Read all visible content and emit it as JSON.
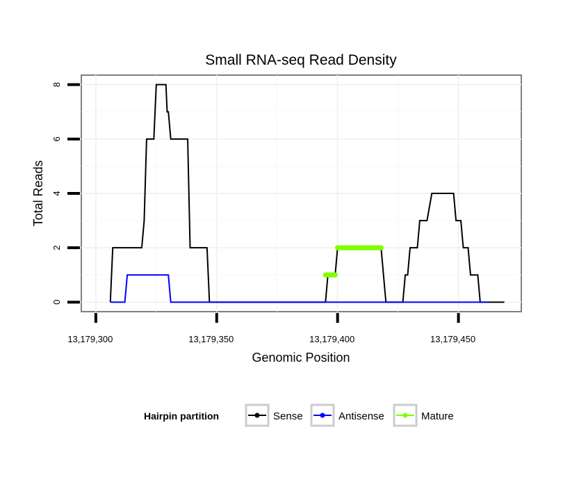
{
  "chart_data": {
    "type": "line",
    "title": "Small RNA-seq Read Density",
    "xlabel": "Genomic Position",
    "ylabel": "Total Reads",
    "xlim": [
      13179294,
      13179476
    ],
    "ylim": [
      -0.35,
      8.35
    ],
    "x_ticks": [
      13179300,
      13179350,
      13179400,
      13179450
    ],
    "x_tick_labels": [
      "13,179,300",
      "13,179,350",
      "13,179,400",
      "13,179,450"
    ],
    "y_ticks": [
      0,
      2,
      4,
      6,
      8
    ],
    "y_tick_labels": [
      "0",
      "2",
      "4",
      "6",
      "8"
    ],
    "grid": true,
    "legend": {
      "title": "Hairpin partition",
      "position": "bottom",
      "entries": [
        "Sense",
        "Antisense",
        "Mature"
      ]
    },
    "series": [
      {
        "name": "Sense",
        "color": "#000000",
        "points": [
          [
            13179306,
            0
          ],
          [
            13179307,
            2
          ],
          [
            13179319,
            2
          ],
          [
            13179320,
            3
          ],
          [
            13179321,
            6
          ],
          [
            13179324,
            6
          ],
          [
            13179325,
            8
          ],
          [
            13179329,
            8
          ],
          [
            13179329.5,
            7
          ],
          [
            13179330,
            7
          ],
          [
            13179331,
            6
          ],
          [
            13179338,
            6
          ],
          [
            13179339,
            2
          ],
          [
            13179346,
            2
          ],
          [
            13179347,
            0
          ],
          [
            13179395,
            0
          ],
          [
            13179396,
            1
          ],
          [
            13179399,
            1
          ],
          [
            13179400,
            2
          ],
          [
            13179418,
            2
          ],
          [
            13179420,
            0
          ],
          [
            13179427,
            0
          ],
          [
            13179428,
            1
          ],
          [
            13179429,
            1
          ],
          [
            13179430,
            2
          ],
          [
            13179433,
            2
          ],
          [
            13179434,
            3
          ],
          [
            13179437,
            3
          ],
          [
            13179439,
            4
          ],
          [
            13179448,
            4
          ],
          [
            13179449,
            3
          ],
          [
            13179451,
            3
          ],
          [
            13179452,
            2
          ],
          [
            13179454,
            2
          ],
          [
            13179455,
            1
          ],
          [
            13179458,
            1
          ],
          [
            13179459,
            0
          ],
          [
            13179469,
            0
          ]
        ]
      },
      {
        "name": "Antisense",
        "color": "#0000ff",
        "points": [
          [
            13179306,
            0
          ],
          [
            13179312,
            0
          ],
          [
            13179313,
            1
          ],
          [
            13179330,
            1
          ],
          [
            13179331,
            0
          ],
          [
            13179462,
            0
          ]
        ]
      },
      {
        "name": "Mature",
        "color": "#7fff00",
        "segments": [
          [
            [
              13179395,
              1
            ],
            [
              13179399,
              1
            ]
          ],
          [
            [
              13179400,
              2
            ],
            [
              13179418,
              2
            ]
          ]
        ]
      }
    ]
  }
}
